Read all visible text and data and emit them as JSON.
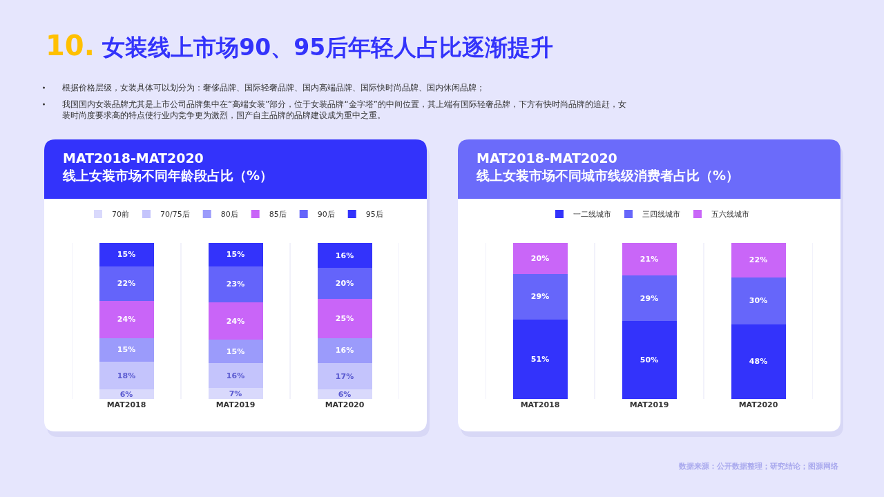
{
  "chart_data": [
    {
      "type": "bar",
      "stacked": true,
      "title": "MAT2018-MAT2020\n线上女装市场不同年龄段占比（%）",
      "legend": "top",
      "annotations": [
        "10. 女装线上市场90、95后年轻人占比逐渐提升",
        "根据价格层级，女装具体可以划分为：奢侈品牌、国际轻奢品牌、国内高端品牌、国际快时尚品牌、国内休闲品牌；",
        "我国国内女装品牌尤其是上市公司品牌集中在“高端女装”部分，位于女装品牌“金字塔”的中间位置，其上端有国际轻奢品牌，下方有快时尚品牌的追赶，女装时尚度要求高的特点使行业内竞争更为激烈，国产自主品牌的品牌建设成为重中之重。"
      ],
      "categories": [
        "MAT2018",
        "MAT2019",
        "MAT2020"
      ],
      "series": [
        {
          "name": "70前",
          "color": "#d9d9fc",
          "values": [
            6,
            7,
            6
          ],
          "value_labels": [
            "6%",
            "7%",
            "6%"
          ]
        },
        {
          "name": "70/75后",
          "color": "#c4c4fc",
          "values": [
            18,
            16,
            17
          ],
          "value_labels": [
            "18%",
            "16%",
            "17%"
          ]
        },
        {
          "name": "80后",
          "color": "#9b9bfb",
          "values": [
            15,
            15,
            16
          ],
          "value_labels": [
            "15%",
            "15%",
            "16%"
          ]
        },
        {
          "name": "85后",
          "color": "#c965f8",
          "values": [
            24,
            24,
            25
          ],
          "value_labels": [
            "24%",
            "24%",
            "25%"
          ]
        },
        {
          "name": "90后",
          "color": "#6464fa",
          "values": [
            22,
            23,
            20
          ],
          "value_labels": [
            "22%",
            "23%",
            "20%"
          ]
        },
        {
          "name": "95后",
          "color": "#3333fb",
          "values": [
            15,
            15,
            16
          ],
          "value_labels": [
            "15%",
            "15%",
            "16%"
          ]
        }
      ]
    },
    {
      "type": "bar",
      "stacked": true,
      "title": "MAT2018-MAT2020\n线上女装市场不同城市线级消费者占比（%）",
      "legend": "top",
      "annotations": [
        "数据来源：公开数据整理；研究结论；图源网络"
      ],
      "categories": [
        "MAT2018",
        "MAT2019",
        "MAT2020"
      ],
      "series": [
        {
          "name": "一二线城市",
          "color": "#3333fb",
          "values": [
            51,
            50,
            48
          ],
          "value_labels": [
            "51%",
            "50%",
            "48%"
          ]
        },
        {
          "name": "三四线城市",
          "color": "#6666fa",
          "values": [
            29,
            29,
            30
          ],
          "value_labels": [
            "29%",
            "29%",
            "30%"
          ]
        },
        {
          "name": "五六线城市",
          "color": "#c966f8",
          "values": [
            20,
            21,
            22
          ],
          "value_labels": [
            "20%",
            "21%",
            "22%"
          ]
        }
      ]
    }
  ]
}
